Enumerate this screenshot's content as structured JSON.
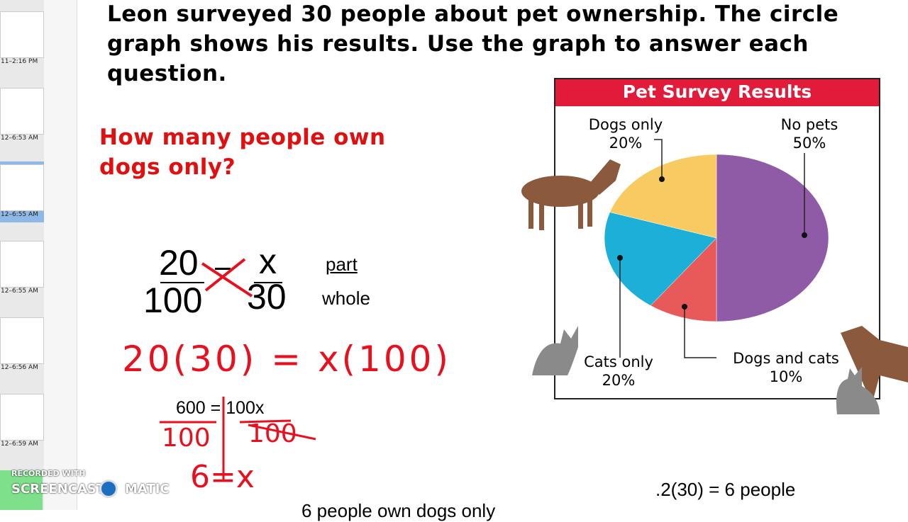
{
  "sidebar": {
    "timestamps": [
      "11–2:16 PM",
      "12–6:53 AM",
      "12–6:55 AM",
      "12–6:55 AM",
      "12–6:56 AM",
      "12–6:59 AM"
    ]
  },
  "watermark": {
    "top": "RECORDED WITH",
    "left": "SCREENCAST",
    "right": "MATIC"
  },
  "problem": {
    "lines": [
      "Leon surveyed 30 people about pet ownership. The circle",
      "graph shows his results. Use the graph to answer each",
      "question."
    ],
    "question": [
      "How many people own",
      "dogs only?"
    ]
  },
  "work": {
    "num_left": "20",
    "den_left": "100",
    "num_right": "x",
    "den_right": "30",
    "part": "part",
    "whole": "whole",
    "cross": "20(30) = x(100)",
    "product": "600 = 100x",
    "div_left": "100",
    "div_right": "100",
    "answer": "6=x",
    "decimal": ".2(30) = 6 people",
    "conclusion": "6 people own dogs only"
  },
  "chart_data": {
    "type": "pie",
    "title": "Pet Survey Results",
    "categories": [
      "No pets",
      "Dogs and cats",
      "Cats only",
      "Dogs only"
    ],
    "values": [
      50,
      10,
      20,
      20
    ],
    "value_labels": [
      "50%",
      "10%",
      "20%",
      "20%"
    ],
    "colors": [
      "#8f5ba6",
      "#e8595a",
      "#1cb0d9",
      "#f7ca62"
    ]
  }
}
